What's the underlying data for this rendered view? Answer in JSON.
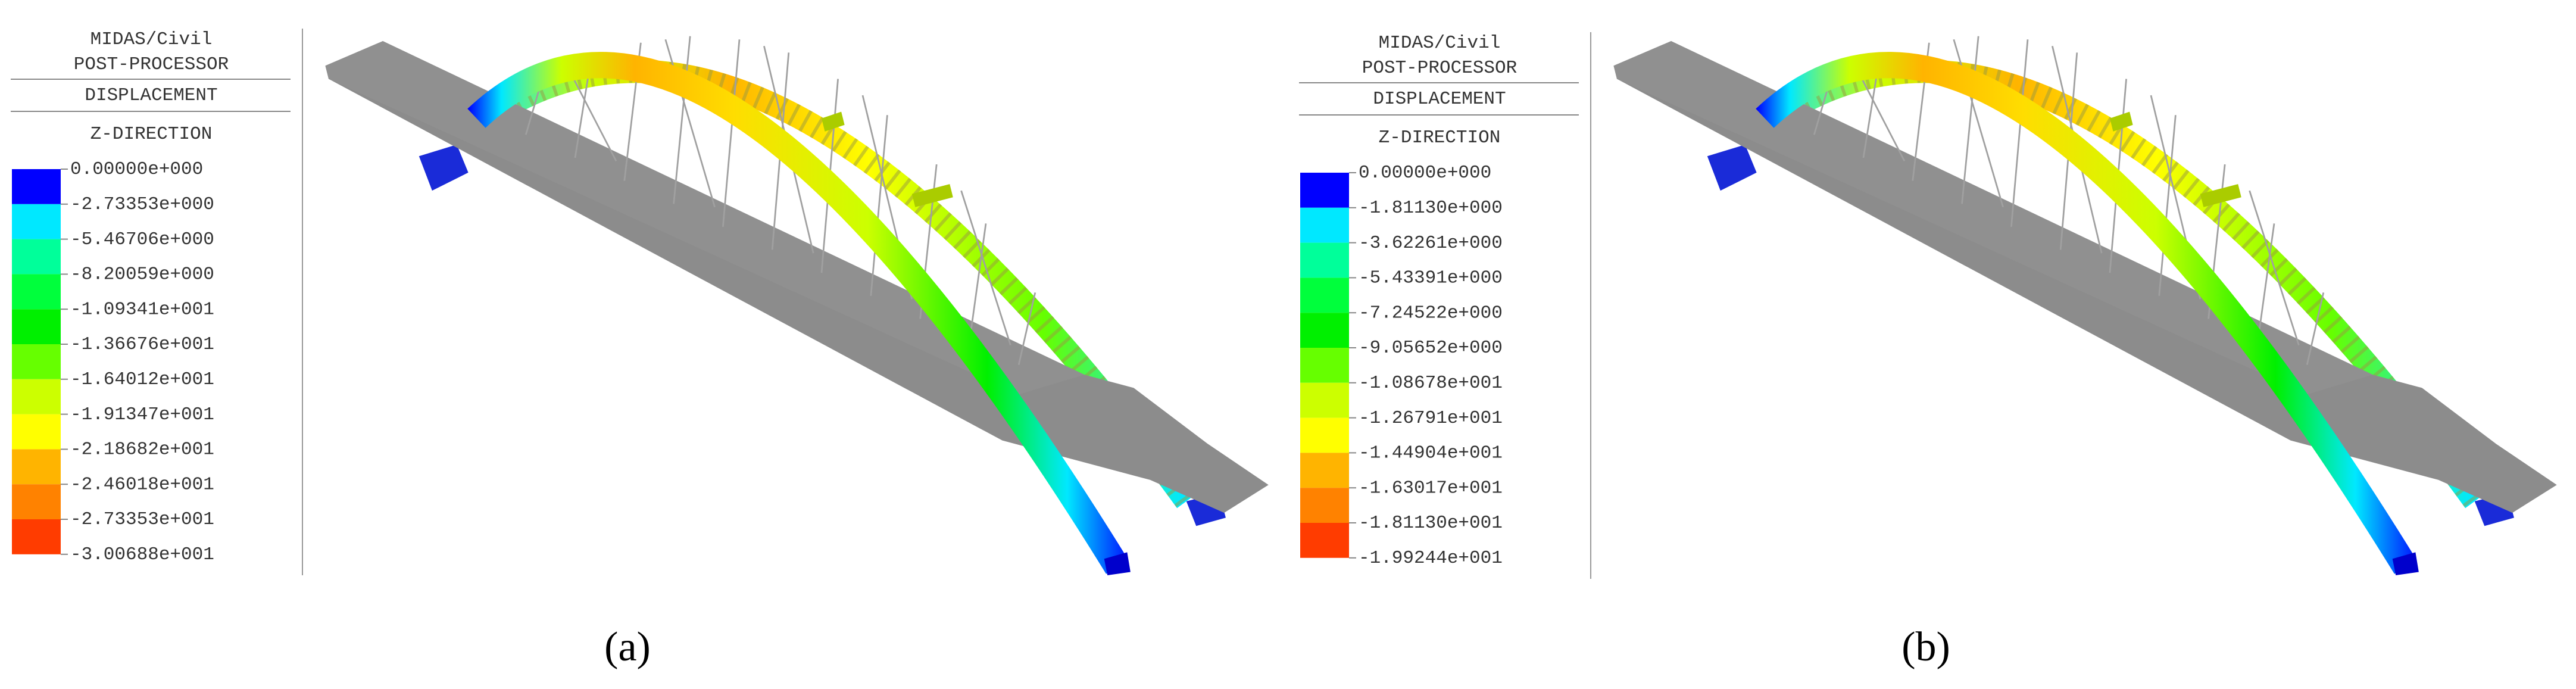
{
  "panels": [
    {
      "header": [
        "MIDAS/Civil",
        "POST-PROCESSOR"
      ],
      "result": "DISPLACEMENT",
      "component": "Z-DIRECTION",
      "levels": [
        "0.00000e+000",
        "-2.73353e+000",
        "-5.46706e+000",
        "-8.20059e+000",
        "-1.09341e+001",
        "-1.36676e+001",
        "-1.64012e+001",
        "-1.91347e+001",
        "-2.18682e+001",
        "-2.46018e+001",
        "-2.73353e+001",
        "-3.00688e+001"
      ],
      "colors": [
        "#0000ff",
        "#00e8ff",
        "#00ff9a",
        "#00ff3c",
        "#00f000",
        "#66ff00",
        "#ccff00",
        "#ffff00",
        "#ffb400",
        "#ff8200",
        "#ff3c00"
      ],
      "caption": "(a)"
    },
    {
      "header": [
        "MIDAS/Civil",
        "POST-PROCESSOR"
      ],
      "result": "DISPLACEMENT",
      "component": "Z-DIRECTION",
      "levels": [
        "0.00000e+000",
        "-1.81130e+000",
        "-3.62261e+000",
        "-5.43391e+000",
        "-7.24522e+000",
        "-9.05652e+000",
        "-1.08678e+001",
        "-1.26791e+001",
        "-1.44904e+001",
        "-1.63017e+001",
        "-1.81130e+001",
        "-1.99244e+001"
      ],
      "colors": [
        "#0000ff",
        "#00e8ff",
        "#00ff9a",
        "#00ff3c",
        "#00f000",
        "#66ff00",
        "#ccff00",
        "#ffff00",
        "#ffb400",
        "#ff8200",
        "#ff3c00"
      ],
      "caption": "(b)"
    }
  ]
}
